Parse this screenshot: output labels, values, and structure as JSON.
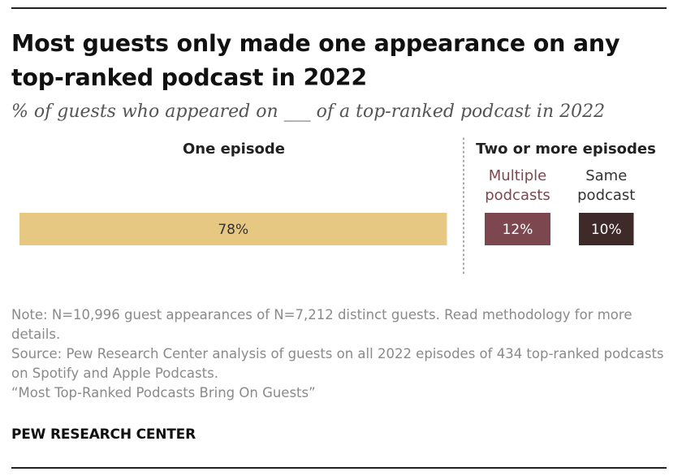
{
  "title": "Most guests only made one appearance on any top-ranked podcast in 2022",
  "subtitle": "% of guests who appeared on ___ of a top-ranked podcast in 2022",
  "chart_data": {
    "type": "bar",
    "orientation": "horizontal",
    "groups": [
      {
        "name": "One episode",
        "categories": [
          ""
        ]
      },
      {
        "name": "Two or more episodes",
        "categories": [
          "Multiple podcasts",
          "Same podcast"
        ]
      }
    ],
    "categories": [
      "One episode",
      "Multiple podcasts",
      "Same podcast"
    ],
    "labels": [
      "One episode",
      "Multiple\npodcasts",
      "Same\npodcast"
    ],
    "values": [
      78,
      12,
      10
    ],
    "value_labels": [
      "78%",
      "12%",
      "10%"
    ],
    "colors": [
      "#e7c883",
      "#7d4750",
      "#3e2a28"
    ],
    "value_label_colors": [
      "#333333",
      "#ffffff",
      "#ffffff"
    ],
    "unit": "%",
    "xlim": [
      0,
      100
    ],
    "xlabel": "",
    "ylabel": "",
    "grid": false,
    "legend": "none"
  },
  "notes": {
    "note": "Note: N=10,996 guest appearances of N=7,212 distinct guests. Read methodology for more details.",
    "source": "Source: Pew Research Center analysis of guests on all 2022 episodes of 434 top-ranked podcasts on Spotify and Apple Podcasts.",
    "report": "“Most Top-Ranked Podcasts Bring On Guests”"
  },
  "brand": "PEW RESEARCH CENTER"
}
